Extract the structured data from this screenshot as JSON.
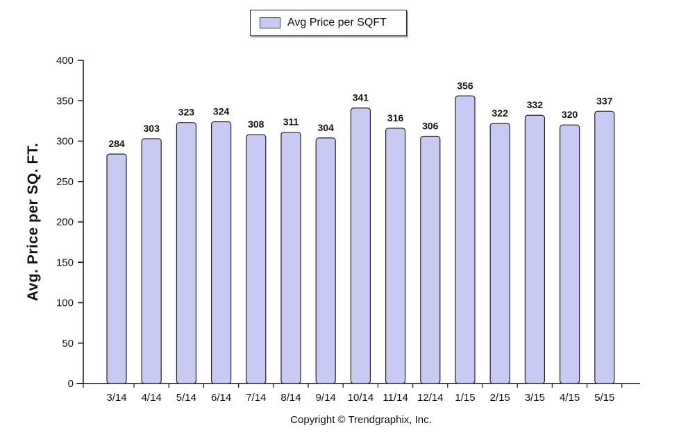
{
  "legend": {
    "label": "Avg Price per SQFT"
  },
  "footer": {
    "copyright": "Copyright © Trendgraphix, Inc."
  },
  "chart_data": {
    "type": "bar",
    "title": "",
    "xlabel": "",
    "ylabel": "Avg. Price per SQ. FT.",
    "ylim": [
      0,
      400
    ],
    "yticks": [
      0,
      50,
      100,
      150,
      200,
      250,
      300,
      350,
      400
    ],
    "categories": [
      "3/14",
      "4/14",
      "5/14",
      "6/14",
      "7/14",
      "8/14",
      "9/14",
      "10/14",
      "11/14",
      "12/14",
      "1/15",
      "2/15",
      "3/15",
      "4/15",
      "5/15"
    ],
    "series": [
      {
        "name": "Avg Price per SQFT",
        "values": [
          284,
          303,
          323,
          324,
          308,
          311,
          304,
          341,
          316,
          306,
          356,
          322,
          332,
          320,
          337
        ]
      }
    ],
    "legend_position": "top-center",
    "grid": false,
    "colors": {
      "bar_fill": "#c8caf4",
      "bar_stroke": "#222222",
      "axis": "#111111"
    }
  }
}
